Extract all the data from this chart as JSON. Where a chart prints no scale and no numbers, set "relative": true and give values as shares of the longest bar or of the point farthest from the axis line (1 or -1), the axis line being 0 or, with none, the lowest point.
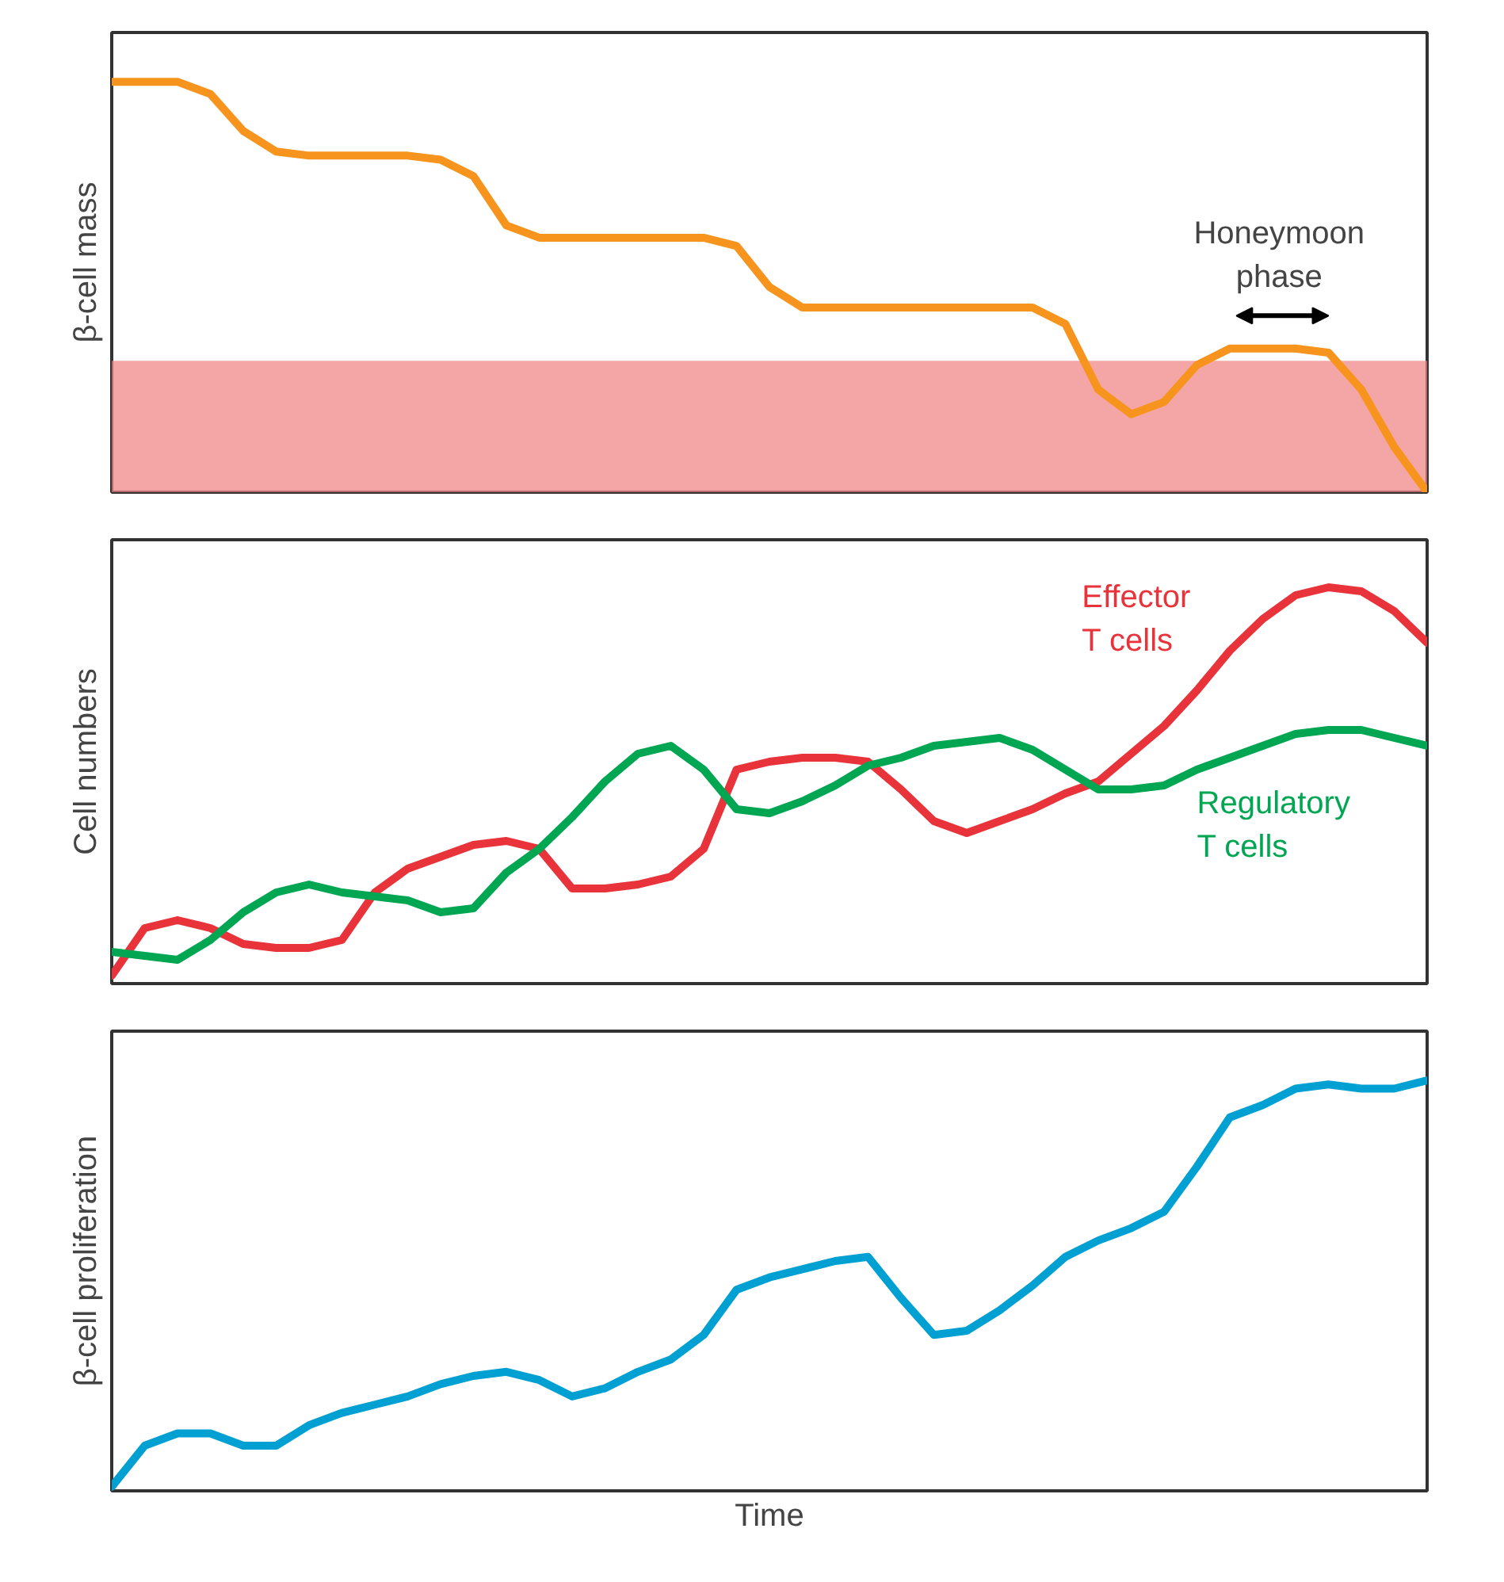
{
  "chart_data": [
    {
      "type": "line",
      "relative": true,
      "ylabel": "β-cell mass",
      "legend": false,
      "categories": [
        null,
        null,
        null,
        null,
        null,
        null,
        null,
        null,
        null,
        null,
        null,
        null,
        null,
        null,
        null,
        null,
        null,
        null,
        null,
        null,
        null,
        null,
        null,
        null,
        null,
        null,
        null,
        null,
        null,
        null,
        null,
        null,
        null,
        null,
        null,
        null,
        null,
        null,
        null,
        null,
        null
      ],
      "series": [
        {
          "color": "#f7941d",
          "values": [
            1,
            1,
            1,
            0.97,
            0.88,
            0.83,
            0.82,
            0.82,
            0.82,
            0.82,
            0.81,
            0.77,
            0.65,
            0.62,
            0.62,
            0.62,
            0.62,
            0.62,
            0.62,
            0.6,
            0.5,
            0.45,
            0.45,
            0.45,
            0.45,
            0.45,
            0.45,
            0.45,
            0.45,
            0.41,
            0.25,
            0.19,
            0.22,
            0.31,
            0.35,
            0.35,
            0.35,
            0.34,
            0.25,
            0.11,
            0
          ]
        }
      ],
      "bands": [
        {
          "axis": "y",
          "from": 0,
          "to": 0.32,
          "color": "#f08080"
        }
      ],
      "annotations": [
        "Honeymoon phase"
      ]
    },
    {
      "type": "line",
      "relative": true,
      "ylabel": "Cell numbers",
      "legend": false,
      "categories": [
        null,
        null,
        null,
        null,
        null,
        null,
        null,
        null,
        null,
        null,
        null,
        null,
        null,
        null,
        null,
        null,
        null,
        null,
        null,
        null,
        null,
        null,
        null,
        null,
        null,
        null,
        null,
        null,
        null,
        null,
        null,
        null,
        null,
        null,
        null,
        null,
        null,
        null,
        null,
        null,
        null
      ],
      "series": [
        {
          "name": "Effector T cells",
          "color": "#e8333a",
          "values": [
            0.02,
            0.14,
            0.16,
            0.14,
            0.1,
            0.09,
            0.09,
            0.11,
            0.23,
            0.29,
            0.32,
            0.35,
            0.36,
            0.34,
            0.24,
            0.24,
            0.25,
            0.27,
            0.34,
            0.54,
            0.56,
            0.57,
            0.57,
            0.56,
            0.49,
            0.41,
            0.38,
            0.41,
            0.44,
            0.48,
            0.51,
            0.58,
            0.65,
            0.74,
            0.84,
            0.92,
            0.98,
            1,
            0.99,
            0.94,
            0.86
          ]
        },
        {
          "name": "Regulatory T cells",
          "color": "#00a651",
          "values": [
            0.08,
            0.07,
            0.06,
            0.11,
            0.18,
            0.23,
            0.25,
            0.23,
            0.22,
            0.21,
            0.18,
            0.19,
            0.28,
            0.34,
            0.42,
            0.51,
            0.58,
            0.6,
            0.54,
            0.44,
            0.43,
            0.46,
            0.5,
            0.55,
            0.57,
            0.6,
            0.61,
            0.62,
            0.59,
            0.54,
            0.49,
            0.49,
            0.5,
            0.54,
            0.57,
            0.6,
            0.63,
            0.64,
            0.64,
            0.62,
            0.6
          ]
        }
      ]
    },
    {
      "type": "line",
      "relative": true,
      "ylabel": "β-cell proliferation",
      "xlabel": "Time",
      "legend": false,
      "categories": [
        null,
        null,
        null,
        null,
        null,
        null,
        null,
        null,
        null,
        null,
        null,
        null,
        null,
        null,
        null,
        null,
        null,
        null,
        null,
        null,
        null,
        null,
        null,
        null,
        null,
        null,
        null,
        null,
        null,
        null,
        null,
        null,
        null,
        null,
        null,
        null,
        null,
        null,
        null,
        null,
        null
      ],
      "series": [
        {
          "color": "#00a0d2",
          "values": [
            0.01,
            0.11,
            0.14,
            0.14,
            0.11,
            0.11,
            0.16,
            0.19,
            0.21,
            0.23,
            0.26,
            0.28,
            0.29,
            0.27,
            0.23,
            0.25,
            0.29,
            0.32,
            0.38,
            0.49,
            0.52,
            0.54,
            0.56,
            0.57,
            0.47,
            0.38,
            0.39,
            0.44,
            0.5,
            0.57,
            0.61,
            0.64,
            0.68,
            0.79,
            0.91,
            0.94,
            0.98,
            0.99,
            0.98,
            0.98,
            1
          ]
        }
      ]
    }
  ]
}
